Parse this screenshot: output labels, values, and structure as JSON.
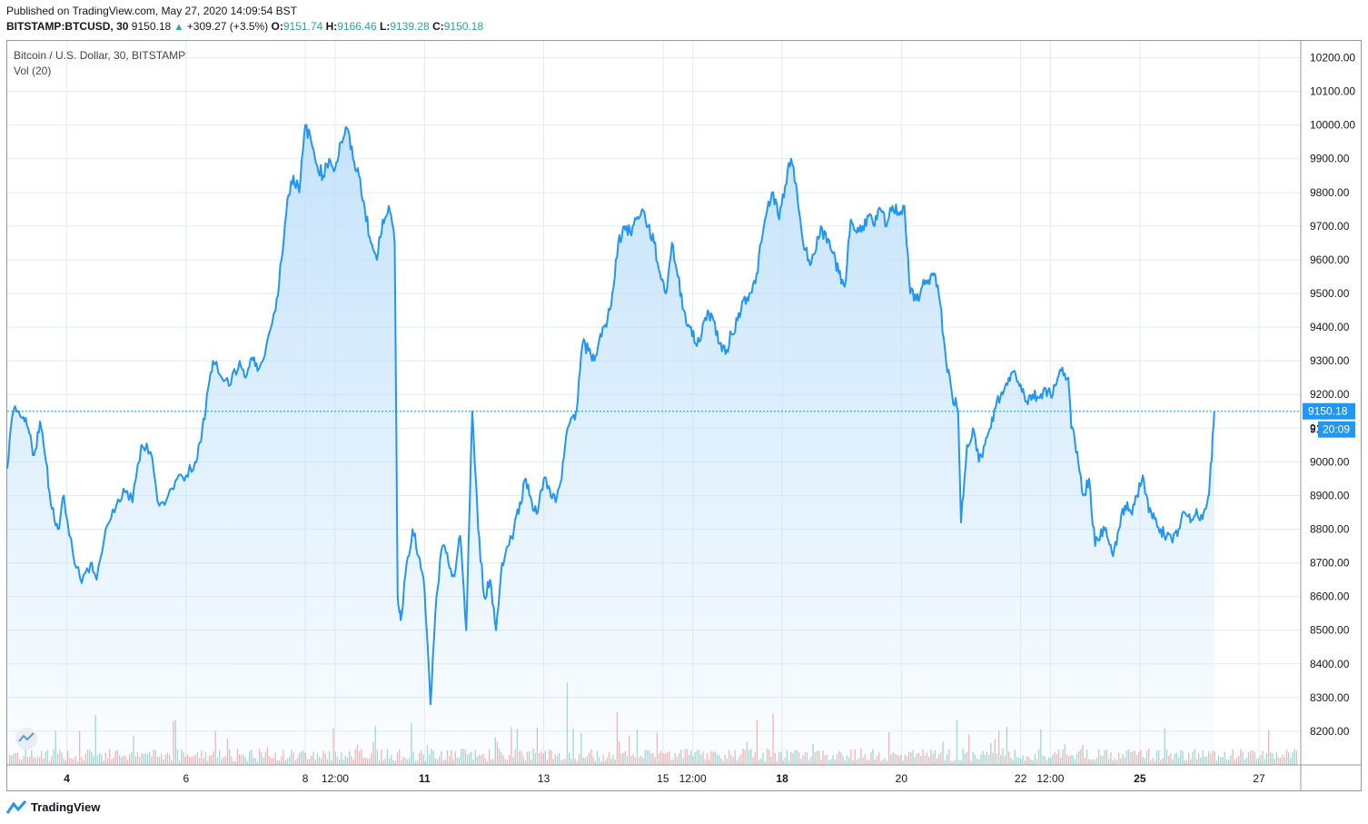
{
  "header": {
    "published": "Published on TradingView.com, May 27, 2020 14:09:54 BST",
    "symbol": "BITSTAMP:BTCUSD, 30",
    "last": "9150.18",
    "change": "+309.27 (+3.5%)",
    "o_label": "O:",
    "o_value": "9151.74",
    "h_label": "H:",
    "h_value": "9166.46",
    "l_label": "L:",
    "l_value": "9139.28",
    "c_label": "C:",
    "c_value": "9150.18"
  },
  "legend": {
    "title": "Bitcoin / U.S. Dollar, 30, BITSTAMP",
    "volume": "Vol (20)"
  },
  "badges": {
    "price": "9150.18",
    "countdown": "20:09",
    "hidden_partial": "91"
  },
  "footer": {
    "brand": "TradingView"
  },
  "colors": {
    "line": "#2196f3",
    "area_top": "#bbdefb",
    "grid": "#e1ecf2",
    "vol_up": "#26a69a",
    "vol_down": "#ef5350",
    "badge": "#2196f3"
  },
  "chart_data": {
    "type": "area",
    "title": "Bitcoin / U.S. Dollar, 30, BITSTAMP",
    "ylim": [
      8100,
      10250
    ],
    "y_ticks": [
      10200,
      10100,
      10000,
      9900,
      9800,
      9700,
      9600,
      9500,
      9400,
      9300,
      9200,
      9100,
      9000,
      8900,
      8800,
      8700,
      8600,
      8500,
      8400,
      8300,
      8200
    ],
    "y_tick_labels": [
      "10200.00",
      "10100.00",
      "10000.00",
      "9900.00",
      "9800.00",
      "9700.00",
      "9600.00",
      "9500.00",
      "9400.00",
      "9300.00",
      "9200.00",
      "9100.00",
      "9000.00",
      "8900.00",
      "8800.00",
      "8700.00",
      "8600.00",
      "8500.00",
      "8400.00",
      "8300.00",
      "8200.00"
    ],
    "x_ticks": [
      {
        "t": 1.5,
        "label": "4",
        "bold": true
      },
      {
        "t": 3.5,
        "label": "6",
        "bold": false
      },
      {
        "t": 5.5,
        "label": "8",
        "bold": false
      },
      {
        "t": 6.0,
        "label": "12:00",
        "bold": false
      },
      {
        "t": 7.5,
        "label": "11",
        "bold": true
      },
      {
        "t": 9.5,
        "label": "13",
        "bold": false
      },
      {
        "t": 11.5,
        "label": "15",
        "bold": false
      },
      {
        "t": 12.0,
        "label": "12:00",
        "bold": false
      },
      {
        "t": 13.5,
        "label": "18",
        "bold": true
      },
      {
        "t": 15.5,
        "label": "20",
        "bold": false
      },
      {
        "t": 17.5,
        "label": "22",
        "bold": false
      },
      {
        "t": 18.0,
        "label": "12:00",
        "bold": false
      },
      {
        "t": 19.5,
        "label": "25",
        "bold": true
      },
      {
        "t": 21.5,
        "label": "27",
        "bold": false
      }
    ],
    "x_range": [
      0.5,
      22.2
    ],
    "series": [
      {
        "points": [
          [
            0.5,
            8980
          ],
          [
            0.6,
            9150
          ],
          [
            0.75,
            9130
          ],
          [
            0.85,
            9100
          ],
          [
            0.95,
            9020
          ],
          [
            1.05,
            9120
          ],
          [
            1.15,
            9000
          ],
          [
            1.25,
            8860
          ],
          [
            1.35,
            8800
          ],
          [
            1.45,
            8900
          ],
          [
            1.6,
            8730
          ],
          [
            1.75,
            8640
          ],
          [
            1.9,
            8700
          ],
          [
            2.0,
            8650
          ],
          [
            2.15,
            8800
          ],
          [
            2.3,
            8850
          ],
          [
            2.45,
            8920
          ],
          [
            2.6,
            8880
          ],
          [
            2.75,
            9050
          ],
          [
            2.9,
            9030
          ],
          [
            3.05,
            8870
          ],
          [
            3.2,
            8900
          ],
          [
            3.35,
            8950
          ],
          [
            3.5,
            8960
          ],
          [
            3.65,
            9000
          ],
          [
            3.75,
            9060
          ],
          [
            3.85,
            9200
          ],
          [
            3.95,
            9300
          ],
          [
            4.1,
            9250
          ],
          [
            4.25,
            9230
          ],
          [
            4.4,
            9300
          ],
          [
            4.5,
            9250
          ],
          [
            4.6,
            9310
          ],
          [
            4.7,
            9270
          ],
          [
            4.85,
            9350
          ],
          [
            5.0,
            9450
          ],
          [
            5.1,
            9600
          ],
          [
            5.2,
            9780
          ],
          [
            5.3,
            9850
          ],
          [
            5.4,
            9800
          ],
          [
            5.5,
            10000
          ],
          [
            5.6,
            9950
          ],
          [
            5.7,
            9880
          ],
          [
            5.8,
            9850
          ],
          [
            5.9,
            9900
          ],
          [
            6.0,
            9870
          ],
          [
            6.1,
            9950
          ],
          [
            6.2,
            9990
          ],
          [
            6.3,
            9900
          ],
          [
            6.4,
            9850
          ],
          [
            6.5,
            9750
          ],
          [
            6.6,
            9650
          ],
          [
            6.7,
            9600
          ],
          [
            6.8,
            9720
          ],
          [
            6.9,
            9760
          ],
          [
            7.0,
            9650
          ],
          [
            7.05,
            8600
          ],
          [
            7.1,
            8530
          ],
          [
            7.2,
            8700
          ],
          [
            7.3,
            8800
          ],
          [
            7.4,
            8720
          ],
          [
            7.5,
            8620
          ],
          [
            7.6,
            8280
          ],
          [
            7.7,
            8600
          ],
          [
            7.8,
            8750
          ],
          [
            7.9,
            8700
          ],
          [
            8.0,
            8660
          ],
          [
            8.1,
            8780
          ],
          [
            8.2,
            8500
          ],
          [
            8.3,
            9150
          ],
          [
            8.4,
            8800
          ],
          [
            8.5,
            8600
          ],
          [
            8.6,
            8650
          ],
          [
            8.7,
            8500
          ],
          [
            8.8,
            8700
          ],
          [
            8.9,
            8750
          ],
          [
            9.0,
            8800
          ],
          [
            9.1,
            8880
          ],
          [
            9.2,
            8950
          ],
          [
            9.3,
            8880
          ],
          [
            9.4,
            8850
          ],
          [
            9.5,
            8950
          ],
          [
            9.6,
            8920
          ],
          [
            9.7,
            8880
          ],
          [
            9.8,
            8950
          ],
          [
            9.9,
            9100
          ],
          [
            10.0,
            9140
          ],
          [
            10.05,
            9150
          ],
          [
            10.15,
            9350
          ],
          [
            10.25,
            9330
          ],
          [
            10.35,
            9300
          ],
          [
            10.45,
            9380
          ],
          [
            10.55,
            9400
          ],
          [
            10.65,
            9500
          ],
          [
            10.75,
            9650
          ],
          [
            10.85,
            9700
          ],
          [
            10.95,
            9680
          ],
          [
            11.05,
            9720
          ],
          [
            11.15,
            9750
          ],
          [
            11.25,
            9700
          ],
          [
            11.35,
            9650
          ],
          [
            11.45,
            9560
          ],
          [
            11.55,
            9500
          ],
          [
            11.65,
            9650
          ],
          [
            11.75,
            9550
          ],
          [
            11.85,
            9450
          ],
          [
            11.95,
            9400
          ],
          [
            12.05,
            9350
          ],
          [
            12.15,
            9380
          ],
          [
            12.25,
            9450
          ],
          [
            12.35,
            9420
          ],
          [
            12.45,
            9350
          ],
          [
            12.55,
            9320
          ],
          [
            12.65,
            9380
          ],
          [
            12.75,
            9420
          ],
          [
            12.85,
            9480
          ],
          [
            12.95,
            9500
          ],
          [
            13.05,
            9530
          ],
          [
            13.15,
            9650
          ],
          [
            13.25,
            9750
          ],
          [
            13.35,
            9800
          ],
          [
            13.45,
            9720
          ],
          [
            13.55,
            9820
          ],
          [
            13.65,
            9900
          ],
          [
            13.75,
            9800
          ],
          [
            13.85,
            9650
          ],
          [
            13.95,
            9600
          ],
          [
            14.05,
            9620
          ],
          [
            14.15,
            9700
          ],
          [
            14.25,
            9650
          ],
          [
            14.35,
            9620
          ],
          [
            14.45,
            9560
          ],
          [
            14.55,
            9520
          ],
          [
            14.65,
            9720
          ],
          [
            14.75,
            9680
          ],
          [
            14.85,
            9700
          ],
          [
            14.95,
            9730
          ],
          [
            15.05,
            9700
          ],
          [
            15.15,
            9750
          ],
          [
            15.25,
            9700
          ],
          [
            15.35,
            9760
          ],
          [
            15.45,
            9740
          ],
          [
            15.55,
            9760
          ],
          [
            15.65,
            9500
          ],
          [
            15.75,
            9480
          ],
          [
            15.85,
            9520
          ],
          [
            15.95,
            9540
          ],
          [
            16.05,
            9560
          ],
          [
            16.15,
            9470
          ],
          [
            16.25,
            9300
          ],
          [
            16.35,
            9200
          ],
          [
            16.45,
            9150
          ],
          [
            16.5,
            8820
          ],
          [
            16.6,
            9050
          ],
          [
            16.7,
            9100
          ],
          [
            16.8,
            9000
          ],
          [
            16.9,
            9050
          ],
          [
            17.0,
            9100
          ],
          [
            17.1,
            9180
          ],
          [
            17.2,
            9200
          ],
          [
            17.3,
            9250
          ],
          [
            17.4,
            9270
          ],
          [
            17.5,
            9230
          ],
          [
            17.6,
            9180
          ],
          [
            17.7,
            9200
          ],
          [
            17.8,
            9190
          ],
          [
            17.9,
            9220
          ],
          [
            18.0,
            9200
          ],
          [
            18.1,
            9230
          ],
          [
            18.2,
            9280
          ],
          [
            18.3,
            9250
          ],
          [
            18.35,
            9100
          ],
          [
            18.45,
            9030
          ],
          [
            18.55,
            8900
          ],
          [
            18.65,
            8950
          ],
          [
            18.75,
            8750
          ],
          [
            18.85,
            8800
          ],
          [
            18.95,
            8780
          ],
          [
            19.05,
            8720
          ],
          [
            19.15,
            8800
          ],
          [
            19.25,
            8870
          ],
          [
            19.35,
            8850
          ],
          [
            19.45,
            8900
          ],
          [
            19.55,
            8960
          ],
          [
            19.65,
            8850
          ],
          [
            19.75,
            8830
          ],
          [
            19.85,
            8800
          ],
          [
            19.95,
            8780
          ],
          [
            20.05,
            8760
          ],
          [
            20.15,
            8800
          ],
          [
            20.25,
            8850
          ],
          [
            20.35,
            8820
          ],
          [
            20.45,
            8860
          ],
          [
            20.55,
            8830
          ],
          [
            20.65,
            8900
          ],
          [
            20.7,
            9000
          ],
          [
            20.75,
            9150
          ]
        ]
      }
    ]
  }
}
